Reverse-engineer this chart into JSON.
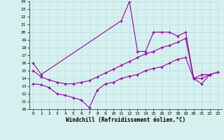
{
  "xlabel": "Windchill (Refroidissement éolien,°C)",
  "xlim": [
    -0.5,
    23.5
  ],
  "ylim": [
    10,
    24
  ],
  "xticks": [
    0,
    1,
    2,
    3,
    4,
    5,
    6,
    7,
    8,
    9,
    10,
    11,
    12,
    13,
    14,
    15,
    16,
    17,
    18,
    19,
    20,
    21,
    22,
    23
  ],
  "yticks": [
    10,
    11,
    12,
    13,
    14,
    15,
    16,
    17,
    18,
    19,
    20,
    21,
    22,
    23,
    24
  ],
  "line_color": "#990099",
  "bg_color": "#d6f0f0",
  "grid_color": "#b8dede",
  "series": [
    {
      "x": [
        0,
        1,
        11,
        12,
        13,
        14,
        15,
        16,
        17,
        18,
        19,
        20,
        21,
        22
      ],
      "y": [
        16.0,
        14.5,
        21.5,
        24.0,
        17.5,
        17.5,
        20.0,
        20.0,
        20.0,
        19.5,
        20.0,
        14.0,
        14.5,
        14.5
      ]
    },
    {
      "x": [
        0,
        1,
        2,
        3,
        4,
        5,
        6,
        7,
        8,
        9,
        10,
        11,
        12,
        13,
        14,
        15,
        16,
        17,
        18,
        19,
        20,
        21,
        22,
        23
      ],
      "y": [
        15.0,
        14.2,
        13.8,
        13.5,
        13.3,
        13.3,
        13.5,
        13.7,
        14.2,
        14.7,
        15.2,
        15.7,
        16.2,
        16.7,
        17.2,
        17.5,
        18.0,
        18.3,
        18.7,
        19.2,
        14.0,
        14.0,
        14.5,
        14.8
      ]
    },
    {
      "x": [
        0,
        1,
        2,
        3,
        4,
        5,
        6,
        7,
        8,
        9,
        10,
        11,
        12,
        13,
        14,
        15,
        16,
        17,
        18,
        19,
        20,
        21,
        22,
        23
      ],
      "y": [
        13.3,
        13.2,
        12.8,
        12.0,
        11.8,
        11.5,
        11.2,
        10.2,
        12.5,
        13.3,
        13.5,
        14.0,
        14.3,
        14.5,
        15.0,
        15.3,
        15.5,
        16.0,
        16.5,
        16.7,
        14.0,
        13.3,
        14.5,
        14.8
      ]
    }
  ]
}
